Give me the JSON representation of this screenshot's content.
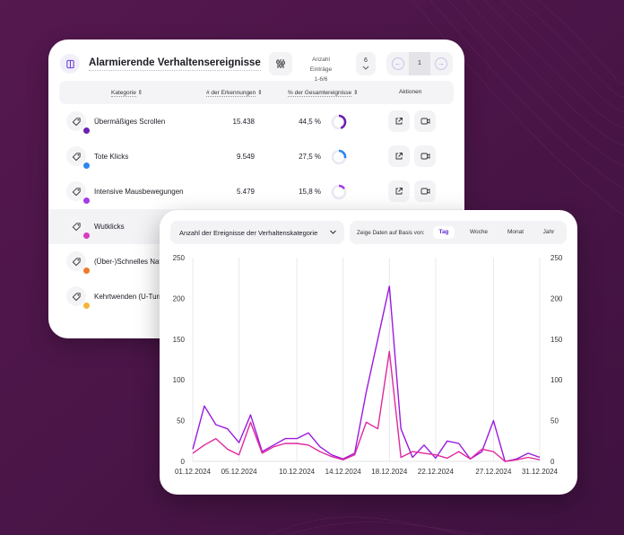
{
  "table": {
    "title": "Alarmierende Verhaltensereignisse",
    "entries_label": "Anzahl Einträge",
    "entries_range": "1-6/6",
    "page_size": "6",
    "current_page": "1",
    "columns": [
      "Kategorie",
      "# der Erkennungen",
      "% der Gesamtereignisse",
      "Aktionen"
    ],
    "rows": [
      {
        "name": "Übermäßiges Scrollen",
        "count": "15.438",
        "pct": "44,5 %",
        "fraction": 0.445,
        "color": "#6b1fb3",
        "highlight": false
      },
      {
        "name": "Tote Klicks",
        "count": "9.549",
        "pct": "27,5 %",
        "fraction": 0.275,
        "color": "#2a86f0",
        "highlight": false
      },
      {
        "name": "Intensive Mausbewegungen",
        "count": "5.479",
        "pct": "15,8 %",
        "fraction": 0.158,
        "color": "#a53be6",
        "highlight": false
      },
      {
        "name": "Wutklicks",
        "count": "",
        "pct": "",
        "fraction": 0,
        "color": "#d63bc7",
        "highlight": true
      },
      {
        "name": "(Über-)Schnelles Navigieren",
        "count": "",
        "pct": "",
        "fraction": 0,
        "color": "#f07a2a",
        "highlight": false
      },
      {
        "name": "Kehrtwenden (U-Turns)",
        "count": "",
        "pct": "",
        "fraction": 0,
        "color": "#f5b53a",
        "highlight": false
      }
    ]
  },
  "chart_panel": {
    "dropdown_label": "Anzahl der Ereignisse der Verhaltenskategorie",
    "period_label": "Zeige Daten auf Basis von:",
    "periods": [
      "Tag",
      "Woche",
      "Monat",
      "Jahr"
    ],
    "active_period": "Tag"
  },
  "chart_data": {
    "type": "line",
    "x": [
      "01.12.2024",
      "02.12.2024",
      "03.12.2024",
      "04.12.2024",
      "05.12.2024",
      "06.12.2024",
      "07.12.2024",
      "08.12.2024",
      "09.12.2024",
      "10.12.2024",
      "11.12.2024",
      "12.12.2024",
      "13.12.2024",
      "14.12.2024",
      "15.12.2024",
      "16.12.2024",
      "17.12.2024",
      "18.12.2024",
      "19.12.2024",
      "20.12.2024",
      "21.12.2024",
      "22.12.2024",
      "23.12.2024",
      "24.12.2024",
      "25.12.2024",
      "26.12.2024",
      "27.12.2024",
      "28.12.2024",
      "29.12.2024",
      "30.12.2024",
      "31.12.2024"
    ],
    "x_ticks": [
      "01.12.2024",
      "05.12.2024",
      "10.12.2024",
      "14.12.2024",
      "18.12.2024",
      "22.12.2024",
      "27.12.2024",
      "31.12.2024"
    ],
    "y_ticks": [
      0,
      50,
      100,
      150,
      200,
      250
    ],
    "ylim": [
      0,
      250
    ],
    "grid": true,
    "series": [
      {
        "color": "#9b1ae0",
        "values": [
          15,
          68,
          45,
          40,
          23,
          57,
          12,
          20,
          28,
          28,
          35,
          18,
          8,
          3,
          10,
          85,
          150,
          215,
          40,
          5,
          20,
          4,
          25,
          22,
          3,
          12,
          50,
          0,
          3,
          10,
          5
        ]
      },
      {
        "color": "#e0279e",
        "values": [
          10,
          20,
          28,
          15,
          8,
          48,
          10,
          18,
          22,
          22,
          20,
          12,
          6,
          2,
          8,
          48,
          40,
          135,
          5,
          12,
          10,
          8,
          4,
          12,
          3,
          15,
          12,
          0,
          2,
          5,
          2
        ]
      }
    ]
  }
}
